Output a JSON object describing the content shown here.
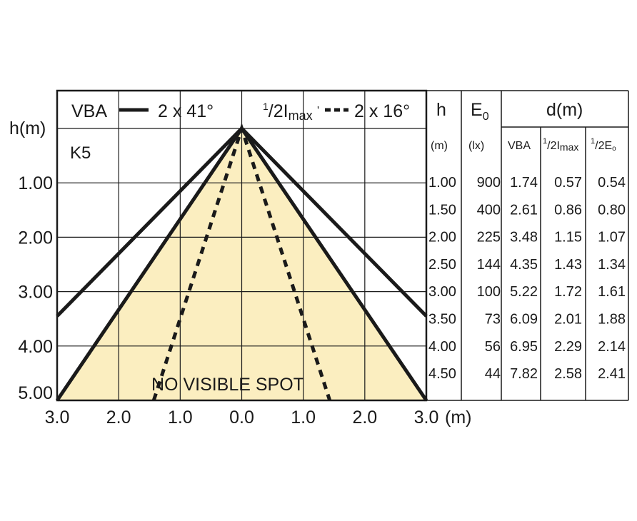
{
  "chart_data": {
    "type": "line",
    "title_vba": "VBA",
    "title_vba_angle": "2 x 41°",
    "title_half_imax_angle": "2 x 16°",
    "label_k5": "K5",
    "yaxis_label": "h(m)",
    "xaxis_unit": "(m)",
    "annotation": "NO VISIBLE SPOT",
    "x_ticks": [
      {
        "value": -3.0,
        "label": "3.0"
      },
      {
        "value": -2.0,
        "label": "2.0"
      },
      {
        "value": -1.0,
        "label": "1.0"
      },
      {
        "value": 0.0,
        "label": "0.0"
      },
      {
        "value": 1.0,
        "label": "1.0"
      },
      {
        "value": 2.0,
        "label": "2.0"
      },
      {
        "value": 3.0,
        "label": "3.0"
      }
    ],
    "y_ticks": [
      {
        "value": 1.0,
        "label": "1.00"
      },
      {
        "value": 2.0,
        "label": "2.00"
      },
      {
        "value": 3.0,
        "label": "3.00"
      },
      {
        "value": 4.0,
        "label": "4.00"
      },
      {
        "value": 5.0,
        "label": "5.00"
      }
    ],
    "xlim": [
      -3.0,
      3.0
    ],
    "ylim": [
      0.0,
      5.0
    ],
    "grid": true,
    "series": [
      {
        "name": "VBA",
        "style": "solid",
        "points": [
          [
            -3.0,
            3.45
          ],
          [
            0.0,
            0.0
          ],
          [
            3.0,
            3.45
          ]
        ]
      },
      {
        "name": "1/2 Imax",
        "style": "dashed",
        "points": [
          [
            -1.43,
            5.0
          ],
          [
            0.0,
            0.0
          ],
          [
            1.43,
            5.0
          ]
        ]
      },
      {
        "name": "",
        "style": "solid-filled",
        "points": [
          [
            -3.0,
            5.0
          ],
          [
            0.0,
            0.0
          ],
          [
            3.0,
            5.0
          ]
        ]
      }
    ],
    "fill_color": "#fbeec0",
    "line_color": "#1a1a1a",
    "table": {
      "header_h": "h",
      "header_h_unit": "(m)",
      "header_e0_main": "E",
      "header_e0_sub": "0",
      "header_e0_unit": "(lx)",
      "header_d": "d(m)",
      "sub_vba": "VBA",
      "sub_imax_sup": "1",
      "sub_imax_slash": "/2",
      "sub_imax_main": "I",
      "sub_imax_sub": "max",
      "sub_e0_sup": "1",
      "sub_e0_slash": "/2",
      "sub_e0_main": "E",
      "sub_e0_sub": "o",
      "rows": [
        {
          "h": "1.00",
          "e0": "900",
          "vba": "1.74",
          "imax": "0.57",
          "e0half": "0.54"
        },
        {
          "h": "1.50",
          "e0": "400",
          "vba": "2.61",
          "imax": "0.86",
          "e0half": "0.80"
        },
        {
          "h": "2.00",
          "e0": "225",
          "vba": "3.48",
          "imax": "1.15",
          "e0half": "1.07"
        },
        {
          "h": "2.50",
          "e0": "144",
          "vba": "4.35",
          "imax": "1.43",
          "e0half": "1.34"
        },
        {
          "h": "3.00",
          "e0": "100",
          "vba": "5.22",
          "imax": "1.72",
          "e0half": "1.61"
        },
        {
          "h": "3.50",
          "e0": "73",
          "vba": "6.09",
          "imax": "2.01",
          "e0half": "1.88"
        },
        {
          "h": "4.00",
          "e0": "56",
          "vba": "6.95",
          "imax": "2.29",
          "e0half": "2.14"
        },
        {
          "h": "4.50",
          "e0": "44",
          "vba": "7.82",
          "imax": "2.58",
          "e0half": "2.41"
        }
      ]
    }
  }
}
